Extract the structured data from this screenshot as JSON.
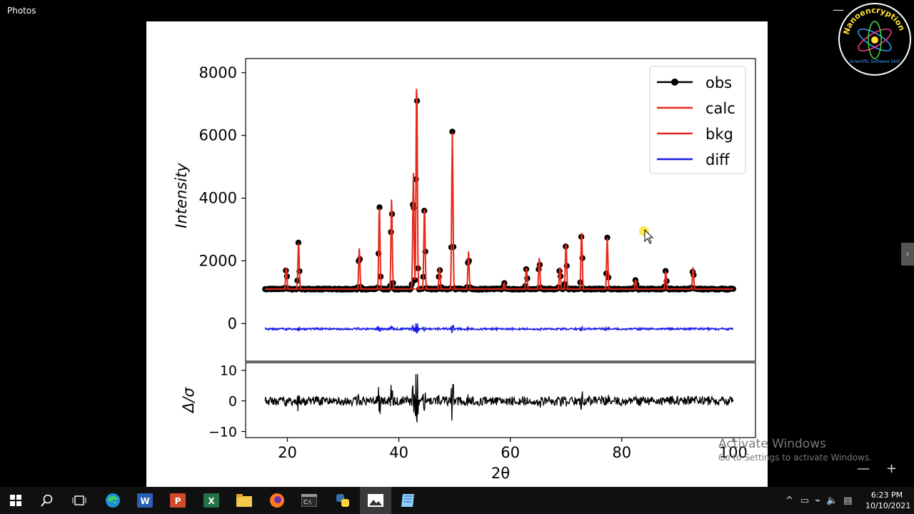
{
  "window": {
    "title": "Photos",
    "minimize_glyph": "—"
  },
  "chart_data": {
    "type": "line",
    "xlabel": "2θ",
    "ylabel_top": "Intensity",
    "ylabel_bottom": "Δ/σ",
    "xlim": [
      12.5,
      104
    ],
    "ylim_top": [
      -1200,
      8450
    ],
    "ylim_bottom": [
      -12,
      12.5
    ],
    "xticks": [
      20,
      40,
      60,
      80,
      100
    ],
    "yticks_top": [
      0,
      2000,
      4000,
      6000,
      8000
    ],
    "yticks_bottom": [
      -10,
      0,
      10
    ],
    "xtick_labels": [
      "20",
      "40",
      "60",
      "80",
      "100"
    ],
    "ytick_labels_top": [
      "0",
      "2000",
      "4000",
      "6000",
      "8000"
    ],
    "ytick_labels_bottom": [
      "−10",
      "0",
      "10"
    ],
    "background_level": 1100,
    "diff_offset": -170,
    "x_range": [
      16,
      100
    ],
    "peaks": [
      {
        "pos": 19.8,
        "height": 700
      },
      {
        "pos": 22.0,
        "height": 1500
      },
      {
        "pos": 32.9,
        "height": 1300
      },
      {
        "pos": 36.5,
        "height": 2700
      },
      {
        "pos": 38.7,
        "height": 2900
      },
      {
        "pos": 42.6,
        "height": 3700
      },
      {
        "pos": 43.2,
        "height": 6800
      },
      {
        "pos": 44.6,
        "height": 2700
      },
      {
        "pos": 47.3,
        "height": 700
      },
      {
        "pos": 49.6,
        "height": 5000
      },
      {
        "pos": 52.5,
        "height": 1200
      },
      {
        "pos": 58.9,
        "height": 200
      },
      {
        "pos": 62.9,
        "height": 700
      },
      {
        "pos": 65.2,
        "height": 1000
      },
      {
        "pos": 68.9,
        "height": 700
      },
      {
        "pos": 70.0,
        "height": 1500
      },
      {
        "pos": 72.8,
        "height": 1900
      },
      {
        "pos": 77.4,
        "height": 1650
      },
      {
        "pos": 82.5,
        "height": 300
      },
      {
        "pos": 87.9,
        "height": 600
      },
      {
        "pos": 92.8,
        "height": 700
      }
    ],
    "legend": {
      "position": "upper right",
      "entries": [
        {
          "label": "obs",
          "color": "#000000",
          "marker": "circle"
        },
        {
          "label": "calc",
          "color": "#e8281a"
        },
        {
          "label": "bkg",
          "color": "#e8281a"
        },
        {
          "label": "diff",
          "color": "#1a1ae8"
        }
      ]
    },
    "colors": {
      "obs": "#000000",
      "calc": "#e8281a",
      "diff": "#1a1ae8",
      "delta": "#000000"
    }
  },
  "logo": {
    "top_text": "Nanoencryption",
    "bottom_text": "Scientific Software Skill"
  },
  "watermark": {
    "line1": "Activate Windows",
    "line2": "Go to Settings to activate Windows."
  },
  "zoom": {
    "out_glyph": "—",
    "in_glyph": "+"
  },
  "taskbar": {
    "items": [
      "start-icon",
      "search-icon",
      "task-view-icon",
      "edge-icon",
      "word-icon",
      "powerpoint-icon",
      "excel-icon",
      "file-explorer-icon",
      "firefox-icon",
      "terminal-icon",
      "python-icon",
      "photos-icon",
      "notepad-icon"
    ],
    "active": "photos-icon",
    "clock_time": "6:23 PM",
    "clock_date": "10/10/2021"
  }
}
